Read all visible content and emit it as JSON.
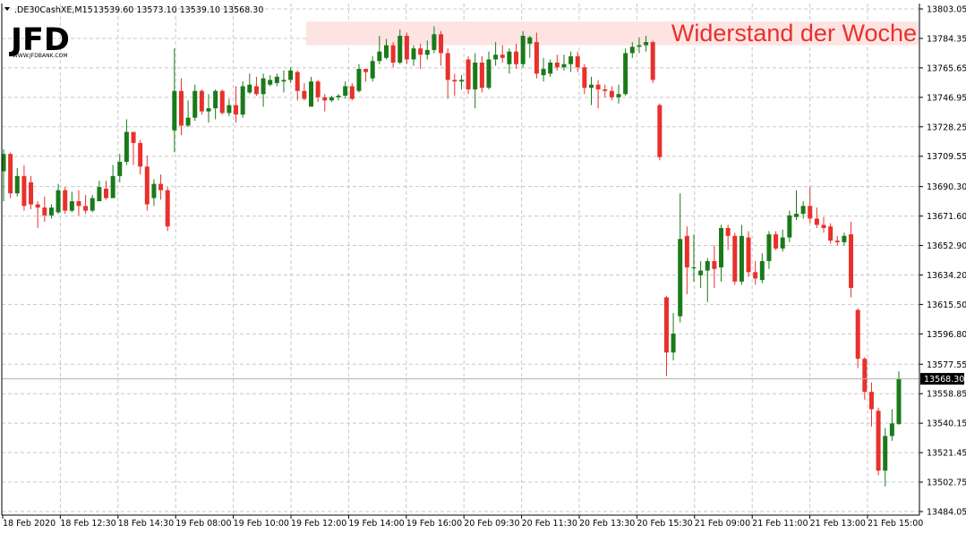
{
  "header": {
    "symbol": ".DE30CashXE,M15",
    "ohlc": "13539.60 13573.10 13539.10 13568.30"
  },
  "logo": {
    "main": "JFD",
    "sub": "WWW.JFDBANK.COM"
  },
  "annotation": {
    "text": "Widerstand der Woche"
  },
  "current_price": {
    "label": "13568.30",
    "value": 13568.3
  },
  "colors": {
    "bull": "#1a7a1a",
    "bear": "#e8312c",
    "grid": "#c8c8c8",
    "resistance_zone": "#fde4e2",
    "annotation": "#e8312c"
  },
  "chart_data": {
    "type": "candlestick",
    "symbol": ".DE30CashXE",
    "timeframe": "M15",
    "ylim": [
      13484.05,
      13803.05
    ],
    "y_ticks": [
      "13803.05",
      "13784.35",
      "13765.65",
      "13746.95",
      "13728.25",
      "13709.55",
      "13690.30",
      "13671.60",
      "13652.90",
      "13634.20",
      "13615.50",
      "13596.80",
      "13577.55",
      "13558.85",
      "13540.15",
      "13521.45",
      "13502.75",
      "13484.05"
    ],
    "x_ticks": [
      "18 Feb 2020",
      "18 Feb 12:30",
      "18 Feb 14:30",
      "19 Feb 08:00",
      "19 Feb 10:00",
      "19 Feb 12:00",
      "19 Feb 14:00",
      "19 Feb 16:00",
      "20 Feb 09:30",
      "20 Feb 11:30",
      "20 Feb 13:30",
      "20 Feb 15:30",
      "21 Feb 09:00",
      "21 Feb 11:00",
      "21 Feb 13:00",
      "21 Feb 15:00"
    ],
    "resistance_zone": {
      "from": 13780.0,
      "to": 13795.0,
      "label": "Widerstand der Woche"
    },
    "candles": [
      {
        "o": 13700,
        "h": 13714,
        "l": 13681,
        "c": 13711
      },
      {
        "o": 13711,
        "h": 13712,
        "l": 13683,
        "c": 13686
      },
      {
        "o": 13686,
        "h": 13702,
        "l": 13684,
        "c": 13697
      },
      {
        "o": 13697,
        "h": 13704,
        "l": 13675,
        "c": 13678
      },
      {
        "o": 13693,
        "h": 13697,
        "l": 13676,
        "c": 13679
      },
      {
        "o": 13679,
        "h": 13681,
        "l": 13664,
        "c": 13677
      },
      {
        "o": 13677,
        "h": 13684,
        "l": 13668,
        "c": 13672
      },
      {
        "o": 13672,
        "h": 13679,
        "l": 13670,
        "c": 13677
      },
      {
        "o": 13674,
        "h": 13692,
        "l": 13673,
        "c": 13688
      },
      {
        "o": 13688,
        "h": 13690,
        "l": 13673,
        "c": 13675
      },
      {
        "o": 13675,
        "h": 13687,
        "l": 13674,
        "c": 13681
      },
      {
        "o": 13681,
        "h": 13688,
        "l": 13672,
        "c": 13678
      },
      {
        "o": 13678,
        "h": 13685,
        "l": 13673,
        "c": 13675
      },
      {
        "o": 13675,
        "h": 13685,
        "l": 13674,
        "c": 13683
      },
      {
        "o": 13681,
        "h": 13694,
        "l": 13681,
        "c": 13690
      },
      {
        "o": 13689,
        "h": 13694,
        "l": 13682,
        "c": 13683
      },
      {
        "o": 13683,
        "h": 13704,
        "l": 13683,
        "c": 13697
      },
      {
        "o": 13697,
        "h": 13711,
        "l": 13693,
        "c": 13706
      },
      {
        "o": 13706,
        "h": 13733,
        "l": 13704,
        "c": 13725
      },
      {
        "o": 13725,
        "h": 13724,
        "l": 13704,
        "c": 13718
      },
      {
        "o": 13718,
        "h": 13720,
        "l": 13698,
        "c": 13703
      },
      {
        "o": 13703,
        "h": 13710,
        "l": 13675,
        "c": 13679
      },
      {
        "o": 13683,
        "h": 13695,
        "l": 13678,
        "c": 13692
      },
      {
        "o": 13692,
        "h": 13698,
        "l": 13682,
        "c": 13688
      },
      {
        "o": 13688,
        "h": 13690,
        "l": 13662,
        "c": 13665
      },
      {
        "o": 13726,
        "h": 13778,
        "l": 13712,
        "c": 13751
      },
      {
        "o": 13751,
        "h": 13759,
        "l": 13723,
        "c": 13729
      },
      {
        "o": 13729,
        "h": 13745,
        "l": 13728,
        "c": 13734
      },
      {
        "o": 13734,
        "h": 13755,
        "l": 13732,
        "c": 13751
      },
      {
        "o": 13751,
        "h": 13752,
        "l": 13736,
        "c": 13738
      },
      {
        "o": 13738,
        "h": 13749,
        "l": 13731,
        "c": 13740
      },
      {
        "o": 13740,
        "h": 13752,
        "l": 13733,
        "c": 13751
      },
      {
        "o": 13751,
        "h": 13752,
        "l": 13736,
        "c": 13737
      },
      {
        "o": 13737,
        "h": 13746,
        "l": 13735,
        "c": 13742
      },
      {
        "o": 13742,
        "h": 13754,
        "l": 13731,
        "c": 13736
      },
      {
        "o": 13736,
        "h": 13757,
        "l": 13734,
        "c": 13754
      },
      {
        "o": 13750,
        "h": 13762,
        "l": 13749,
        "c": 13755
      },
      {
        "o": 13754,
        "h": 13760,
        "l": 13748,
        "c": 13749
      },
      {
        "o": 13749,
        "h": 13762,
        "l": 13741,
        "c": 13759
      },
      {
        "o": 13755,
        "h": 13761,
        "l": 13754,
        "c": 13758
      },
      {
        "o": 13756,
        "h": 13762,
        "l": 13754,
        "c": 13760
      },
      {
        "o": 13757,
        "h": 13764,
        "l": 13750,
        "c": 13758
      },
      {
        "o": 13758,
        "h": 13766,
        "l": 13756,
        "c": 13764
      },
      {
        "o": 13763,
        "h": 13764,
        "l": 13745,
        "c": 13751
      },
      {
        "o": 13751,
        "h": 13756,
        "l": 13745,
        "c": 13746
      },
      {
        "o": 13741,
        "h": 13760,
        "l": 13741,
        "c": 13757
      },
      {
        "o": 13757,
        "h": 13758,
        "l": 13744,
        "c": 13747
      },
      {
        "o": 13747,
        "h": 13749,
        "l": 13738,
        "c": 13745
      },
      {
        "o": 13745,
        "h": 13748,
        "l": 13744,
        "c": 13747
      },
      {
        "o": 13747,
        "h": 13749,
        "l": 13745,
        "c": 13748
      },
      {
        "o": 13748,
        "h": 13757,
        "l": 13746,
        "c": 13754
      },
      {
        "o": 13754,
        "h": 13756,
        "l": 13745,
        "c": 13746
      },
      {
        "o": 13751,
        "h": 13768,
        "l": 13750,
        "c": 13765
      },
      {
        "o": 13765,
        "h": 13765,
        "l": 13757,
        "c": 13763
      },
      {
        "o": 13759,
        "h": 13773,
        "l": 13757,
        "c": 13770
      },
      {
        "o": 13770,
        "h": 13786,
        "l": 13768,
        "c": 13776
      },
      {
        "o": 13772,
        "h": 13784,
        "l": 13771,
        "c": 13780
      },
      {
        "o": 13780,
        "h": 13782,
        "l": 13766,
        "c": 13769
      },
      {
        "o": 13769,
        "h": 13790,
        "l": 13768,
        "c": 13786
      },
      {
        "o": 13786,
        "h": 13788,
        "l": 13768,
        "c": 13771
      },
      {
        "o": 13771,
        "h": 13780,
        "l": 13767,
        "c": 13778
      },
      {
        "o": 13778,
        "h": 13781,
        "l": 13765,
        "c": 13774
      },
      {
        "o": 13774,
        "h": 13783,
        "l": 13771,
        "c": 13777
      },
      {
        "o": 13777,
        "h": 13792,
        "l": 13775,
        "c": 13787
      },
      {
        "o": 13787,
        "h": 13789,
        "l": 13767,
        "c": 13775
      },
      {
        "o": 13775,
        "h": 13778,
        "l": 13746,
        "c": 13758
      },
      {
        "o": 13758,
        "h": 13762,
        "l": 13748,
        "c": 13757
      },
      {
        "o": 13757,
        "h": 13761,
        "l": 13752,
        "c": 13758
      },
      {
        "o": 13771,
        "h": 13773,
        "l": 13749,
        "c": 13752
      },
      {
        "o": 13752,
        "h": 13775,
        "l": 13740,
        "c": 13769
      },
      {
        "o": 13769,
        "h": 13773,
        "l": 13750,
        "c": 13753
      },
      {
        "o": 13753,
        "h": 13776,
        "l": 13752,
        "c": 13771
      },
      {
        "o": 13771,
        "h": 13782,
        "l": 13767,
        "c": 13774
      },
      {
        "o": 13774,
        "h": 13780,
        "l": 13769,
        "c": 13772
      },
      {
        "o": 13768,
        "h": 13778,
        "l": 13762,
        "c": 13776
      },
      {
        "o": 13776,
        "h": 13781,
        "l": 13765,
        "c": 13768
      },
      {
        "o": 13768,
        "h": 13789,
        "l": 13766,
        "c": 13786
      },
      {
        "o": 13781,
        "h": 13786,
        "l": 13772,
        "c": 13785
      },
      {
        "o": 13782,
        "h": 13788,
        "l": 13759,
        "c": 13762
      },
      {
        "o": 13761,
        "h": 13772,
        "l": 13757,
        "c": 13765
      },
      {
        "o": 13762,
        "h": 13771,
        "l": 13760,
        "c": 13769
      },
      {
        "o": 13769,
        "h": 13774,
        "l": 13764,
        "c": 13766
      },
      {
        "o": 13766,
        "h": 13774,
        "l": 13764,
        "c": 13768
      },
      {
        "o": 13768,
        "h": 13776,
        "l": 13763,
        "c": 13773
      },
      {
        "o": 13773,
        "h": 13776,
        "l": 13763,
        "c": 13766
      },
      {
        "o": 13766,
        "h": 13768,
        "l": 13749,
        "c": 13753
      },
      {
        "o": 13753,
        "h": 13760,
        "l": 13742,
        "c": 13755
      },
      {
        "o": 13755,
        "h": 13758,
        "l": 13740,
        "c": 13752
      },
      {
        "o": 13752,
        "h": 13755,
        "l": 13747,
        "c": 13751
      },
      {
        "o": 13751,
        "h": 13754,
        "l": 13745,
        "c": 13747
      },
      {
        "o": 13747,
        "h": 13755,
        "l": 13743,
        "c": 13749
      },
      {
        "o": 13749,
        "h": 13778,
        "l": 13748,
        "c": 13775
      },
      {
        "o": 13775,
        "h": 13782,
        "l": 13772,
        "c": 13779
      },
      {
        "o": 13779,
        "h": 13785,
        "l": 13775,
        "c": 13780
      },
      {
        "o": 13780,
        "h": 13786,
        "l": 13776,
        "c": 13782
      },
      {
        "o": 13782,
        "h": 13783,
        "l": 13756,
        "c": 13758
      },
      {
        "o": 13742,
        "h": 13743,
        "l": 13707,
        "c": 13709
      },
      {
        "o": 13620,
        "h": 13621,
        "l": 13570,
        "c": 13585
      },
      {
        "o": 13585,
        "h": 13610,
        "l": 13580,
        "c": 13597
      },
      {
        "o": 13608,
        "h": 13686,
        "l": 13604,
        "c": 13657
      },
      {
        "o": 13659,
        "h": 13665,
        "l": 13622,
        "c": 13639
      },
      {
        "o": 13639,
        "h": 13660,
        "l": 13630,
        "c": 13639
      },
      {
        "o": 13634,
        "h": 13643,
        "l": 13626,
        "c": 13637
      },
      {
        "o": 13637,
        "h": 13645,
        "l": 13617,
        "c": 13643
      },
      {
        "o": 13643,
        "h": 13653,
        "l": 13626,
        "c": 13638
      },
      {
        "o": 13639,
        "h": 13666,
        "l": 13630,
        "c": 13664
      },
      {
        "o": 13664,
        "h": 13666,
        "l": 13650,
        "c": 13659
      },
      {
        "o": 13659,
        "h": 13661,
        "l": 13628,
        "c": 13630
      },
      {
        "o": 13630,
        "h": 13666,
        "l": 13628,
        "c": 13659
      },
      {
        "o": 13658,
        "h": 13662,
        "l": 13633,
        "c": 13636
      },
      {
        "o": 13636,
        "h": 13643,
        "l": 13628,
        "c": 13632
      },
      {
        "o": 13631,
        "h": 13648,
        "l": 13629,
        "c": 13643
      },
      {
        "o": 13643,
        "h": 13662,
        "l": 13638,
        "c": 13660
      },
      {
        "o": 13660,
        "h": 13662,
        "l": 13650,
        "c": 13651
      },
      {
        "o": 13651,
        "h": 13663,
        "l": 13649,
        "c": 13658
      },
      {
        "o": 13658,
        "h": 13675,
        "l": 13655,
        "c": 13672
      },
      {
        "o": 13671,
        "h": 13688,
        "l": 13669,
        "c": 13673
      },
      {
        "o": 13673,
        "h": 13681,
        "l": 13670,
        "c": 13678
      },
      {
        "o": 13678,
        "h": 13690,
        "l": 13667,
        "c": 13670
      },
      {
        "o": 13670,
        "h": 13677,
        "l": 13664,
        "c": 13666
      },
      {
        "o": 13666,
        "h": 13671,
        "l": 13661,
        "c": 13664
      },
      {
        "o": 13665,
        "h": 13667,
        "l": 13654,
        "c": 13656
      },
      {
        "o": 13656,
        "h": 13659,
        "l": 13653,
        "c": 13655
      },
      {
        "o": 13655,
        "h": 13661,
        "l": 13653,
        "c": 13659
      },
      {
        "o": 13660,
        "h": 13668,
        "l": 13620,
        "c": 13626
      },
      {
        "o": 13612,
        "h": 13613,
        "l": 13575,
        "c": 13581
      },
      {
        "o": 13581,
        "h": 13582,
        "l": 13555,
        "c": 13560
      },
      {
        "o": 13560,
        "h": 13566,
        "l": 13538,
        "c": 13549
      },
      {
        "o": 13548,
        "h": 13550,
        "l": 13507,
        "c": 13510
      },
      {
        "o": 13510,
        "h": 13537,
        "l": 13500,
        "c": 13532
      },
      {
        "o": 13532,
        "h": 13549,
        "l": 13529,
        "c": 13540
      },
      {
        "o": 13539.6,
        "h": 13573.1,
        "l": 13539.1,
        "c": 13568.3
      }
    ]
  }
}
